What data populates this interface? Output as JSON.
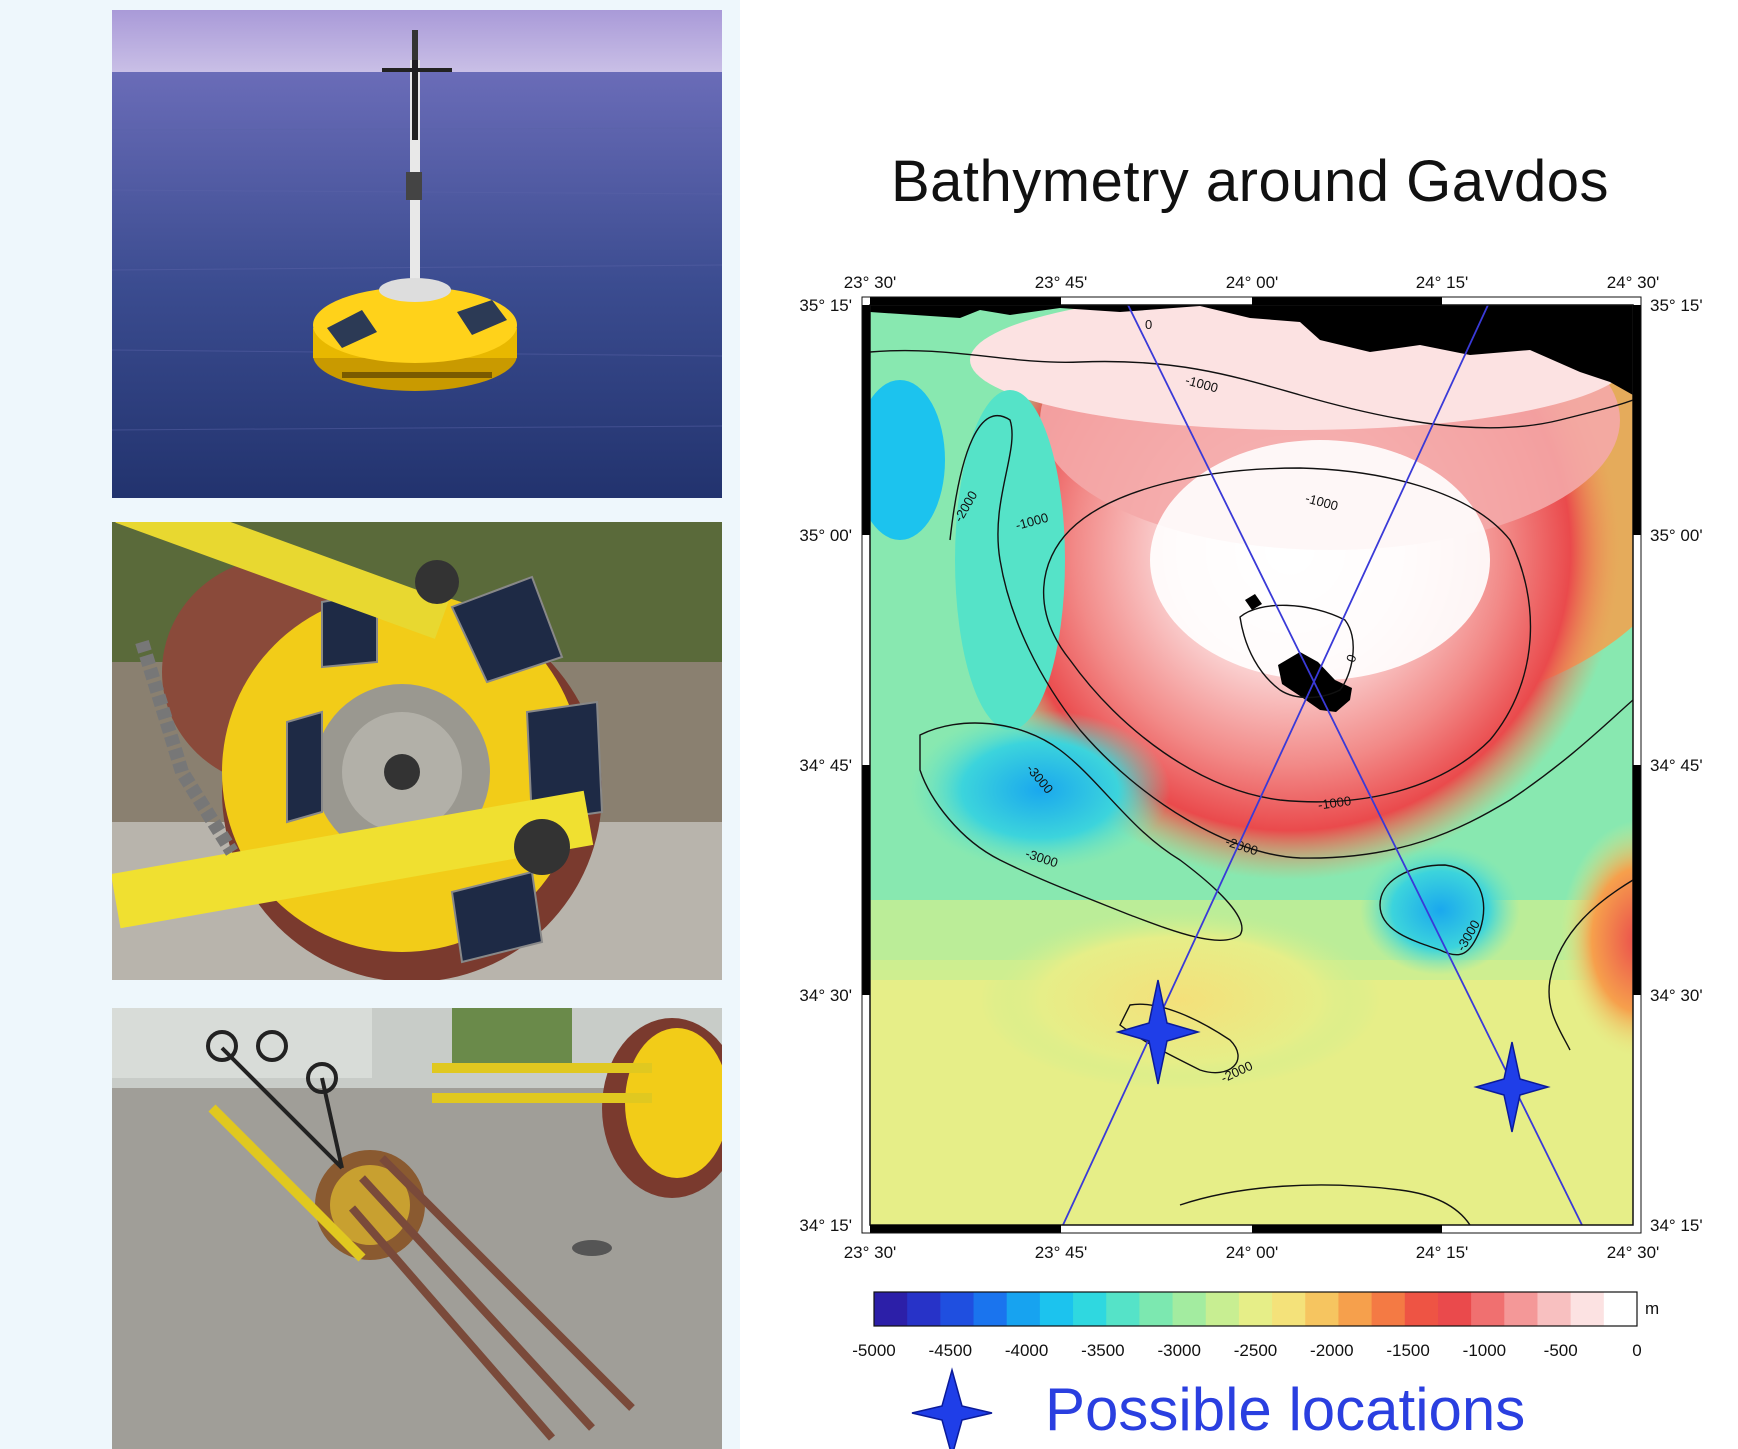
{
  "title": "Bathymetry around Gavdos",
  "photos": [
    {
      "name": "buoy-at-sea-photo",
      "subject": "yellow buoy floating at sea"
    },
    {
      "name": "buoy-on-dock-photo",
      "subject": "yellow buoy lying on its side on dock"
    },
    {
      "name": "buoy-frame-photo",
      "subject": "buoy frame on concrete yard"
    }
  ],
  "map": {
    "lon_labels": [
      "23° 30'",
      "23° 45'",
      "24° 00'",
      "24° 15'",
      "24° 30'"
    ],
    "lat_labels": [
      "35° 15'",
      "35° 00'",
      "34° 45'",
      "34° 30'",
      "34° 15'"
    ],
    "contour_labels": [
      "0",
      "-1000",
      "-1000",
      "-1000",
      "-1000",
      "-2000",
      "-2000",
      "-2000",
      "-3000",
      "-3000",
      "-3000",
      "0"
    ],
    "markers": [
      {
        "name": "location-west",
        "lon": "23° 52'",
        "lat": "34° 28'"
      },
      {
        "name": "location-east",
        "lon": "24° 20'",
        "lat": "34° 25'"
      }
    ]
  },
  "colorbar": {
    "unit": "m",
    "ticks": [
      "-5000",
      "-4500",
      "-4000",
      "-3500",
      "-3000",
      "-2500",
      "-2000",
      "-1500",
      "-1000",
      "-500",
      "0"
    ],
    "colors": [
      "#2c1fa8",
      "#2733c8",
      "#1f4fe0",
      "#1a74ee",
      "#17a3f0",
      "#1cc3ee",
      "#2fd8e0",
      "#55e3c8",
      "#7ce8b0",
      "#a3eca0",
      "#c8ee92",
      "#e6ee88",
      "#f4e27a",
      "#f6c560",
      "#f6a04c",
      "#f47a44",
      "#ee5444",
      "#ea4a4c",
      "#f07070",
      "#f49898",
      "#f8c0c0",
      "#fce2e2",
      "#ffffff"
    ]
  },
  "legend": {
    "label": "Possible locations"
  }
}
